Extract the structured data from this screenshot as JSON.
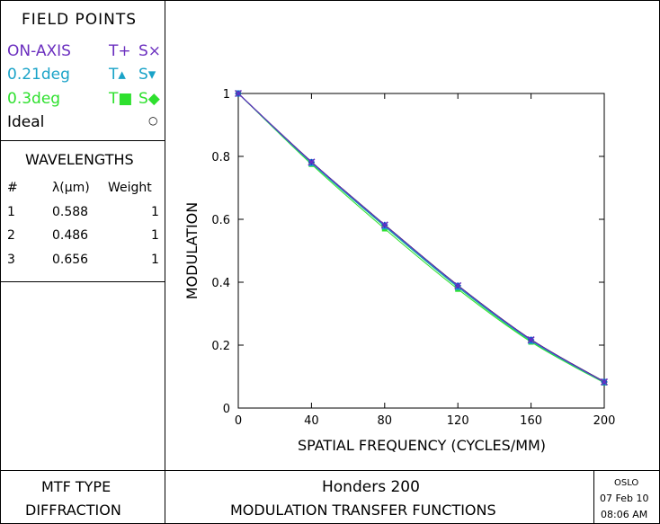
{
  "legend": {
    "title": "FIELD POINTS",
    "fields": [
      {
        "label": "ON-AXIS",
        "t": "T+",
        "s": "S×",
        "color": "#6b2fbf"
      },
      {
        "label": "0.21deg",
        "t": "T▴",
        "s": "S▾",
        "color": "#1aa3c8"
      },
      {
        "label": "0.3deg",
        "t": "T■",
        "s": "S◆",
        "color": "#2ee02e"
      },
      {
        "label": "Ideal",
        "t": "",
        "s": "○",
        "color": "#000000"
      }
    ]
  },
  "wavelengths": {
    "title": "WAVELENGTHS",
    "headers": [
      "#",
      "λ(μm)",
      "Weight"
    ],
    "rows": [
      [
        "1",
        "0.588",
        "1"
      ],
      [
        "2",
        "0.486",
        "1"
      ],
      [
        "3",
        "0.656",
        "1"
      ]
    ]
  },
  "footer": {
    "mtf_type_label": "MTF TYPE",
    "mtf_type_value": "DIFFRACTION",
    "lens_name": "Honders 200",
    "plot_title": "MODULATION TRANSFER FUNCTIONS",
    "program": "OSLO",
    "date": "07 Feb 10",
    "time": "08:06 AM"
  },
  "chart_data": {
    "type": "line",
    "xlabel": "SPATIAL FREQUENCY (CYCLES/MM)",
    "ylabel": "MODULATION",
    "xlim": [
      0,
      200
    ],
    "ylim": [
      0,
      1
    ],
    "xticks": [
      0,
      40,
      80,
      120,
      160,
      200
    ],
    "yticks": [
      0,
      0.2,
      0.4,
      0.6,
      0.8,
      1
    ],
    "grid": false,
    "x": [
      0,
      40,
      80,
      120,
      160,
      200
    ],
    "series": [
      {
        "name": "Ideal",
        "color": "#000000",
        "values": [
          1,
          0.783,
          0.583,
          0.39,
          0.218,
          0.084
        ]
      },
      {
        "name": "ON-AXIS T",
        "color": "#1e3ad0",
        "values": [
          1,
          0.782,
          0.582,
          0.389,
          0.217,
          0.083
        ]
      },
      {
        "name": "ON-AXIS S",
        "color": "#6b2fbf",
        "values": [
          1,
          0.782,
          0.582,
          0.389,
          0.217,
          0.083
        ]
      },
      {
        "name": "0.21deg T",
        "color": "#1aa3c8",
        "values": [
          1,
          0.779,
          0.578,
          0.385,
          0.214,
          0.082
        ]
      },
      {
        "name": "0.21deg S",
        "color": "#1aa3c8",
        "values": [
          1,
          0.781,
          0.58,
          0.388,
          0.216,
          0.083
        ]
      },
      {
        "name": "0.3deg T",
        "color": "#2ee02e",
        "values": [
          1,
          0.775,
          0.57,
          0.378,
          0.21,
          0.08
        ]
      },
      {
        "name": "0.3deg S",
        "color": "#2ee02e",
        "values": [
          1,
          0.779,
          0.577,
          0.384,
          0.213,
          0.082
        ]
      }
    ]
  }
}
